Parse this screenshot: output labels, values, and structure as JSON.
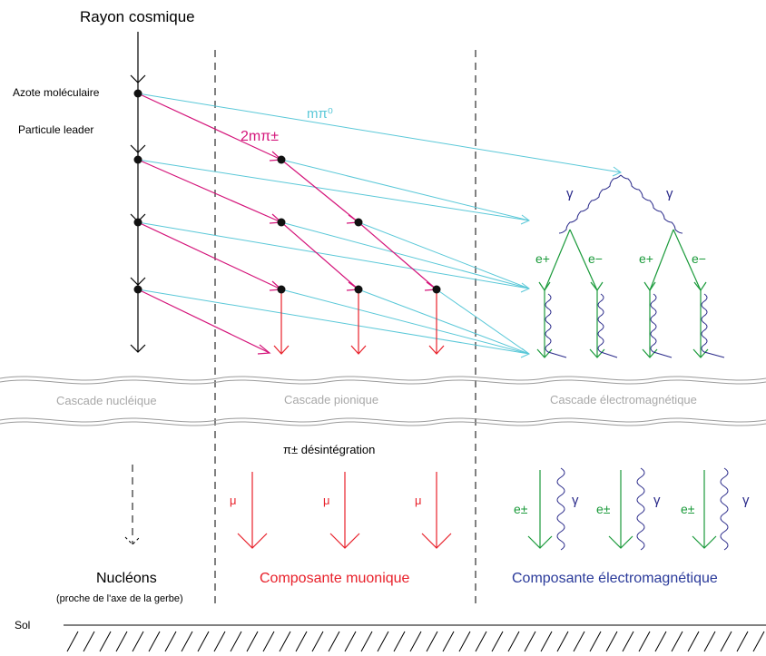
{
  "labels": {
    "cosmic_ray": "Rayon cosmique",
    "nitrogen": "Azote moléculaire",
    "leader": "Particule leader",
    "neutral_pion": "mπ⁰",
    "charged_pion": "2mπ±",
    "gamma": "γ",
    "positron": "e+",
    "electron": "e−",
    "nuclear_cascade": "Cascade nucléique",
    "pionic_cascade": "Cascade pionique",
    "em_cascade": "Cascade électromagnétique",
    "pion_decay": "π± désintégration",
    "muon": "μ",
    "e_pm": "e±",
    "nucleons": "Nucléons",
    "nucleons_note": "(proche de l'axe de la gerbe)",
    "muonic_component": "Composante muonique",
    "em_component": "Composante électromagnétique",
    "ground": "Sol"
  },
  "colors": {
    "primary": "#000000",
    "charged_pion": "#d4147a",
    "neutral_pion": "#5ac8d8",
    "muon": "#e8202a",
    "electromagnetic": "#1a9a3a",
    "gamma": "#2a2a8a",
    "cascade_text": "#a8a8a8",
    "muonic_title": "#e8202a",
    "em_title": "#2a3a9a"
  }
}
